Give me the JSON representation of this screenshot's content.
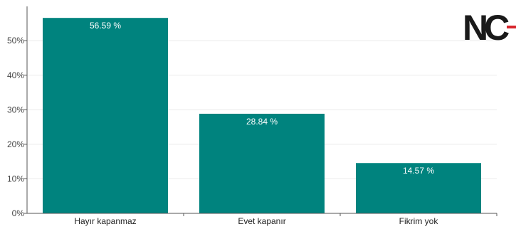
{
  "chart_data": {
    "type": "bar",
    "categories": [
      "Hayır kapanmaz",
      "Evet kapanır",
      "Fikrim yok"
    ],
    "values": [
      56.59,
      28.84,
      14.57
    ],
    "value_labels": [
      "56.59 %",
      "28.84 %",
      "14.57 %"
    ],
    "y_ticks": [
      0,
      10,
      20,
      30,
      40,
      50
    ],
    "y_tick_labels": [
      "0%",
      "10%",
      "20%",
      "30%",
      "40%",
      "50%"
    ],
    "ylim": [
      0,
      59.1
    ],
    "grid": true,
    "colors": {
      "bar": "#00837e",
      "grid": "#ebebeb",
      "axis": "#555555"
    }
  },
  "logo": {
    "text": "NC",
    "accent_color": "#d7262d"
  }
}
